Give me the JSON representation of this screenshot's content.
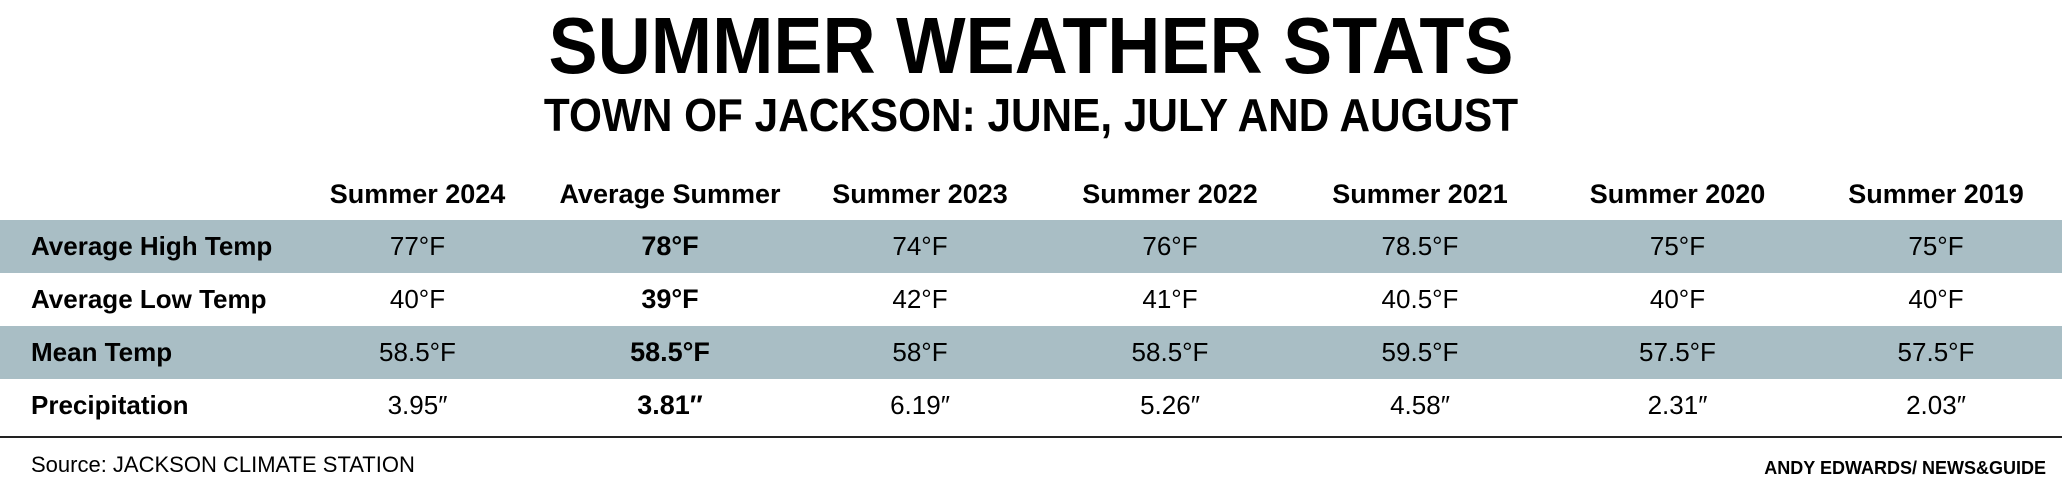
{
  "title": "SUMMER WEATHER STATS",
  "subtitle": "TOWN OF JACKSON: JUNE, JULY AND AUGUST",
  "colors": {
    "shaded_row": "#a9bec5",
    "rule": "#222222"
  },
  "chart_data": {
    "type": "table",
    "title": "SUMMER WEATHER STATS",
    "subtitle": "TOWN OF JACKSON: JUNE, JULY AND AUGUST",
    "columns": [
      "Summer 2024",
      "Average Summer",
      "Summer 2023",
      "Summer 2022",
      "Summer 2021",
      "Summer 2020",
      "Summer 2019"
    ],
    "highlight_column": "Average Summer",
    "rows": [
      {
        "label": "Average High Temp",
        "shaded": true,
        "values": [
          "77°F",
          "78°F",
          "74°F",
          "76°F",
          "78.5°F",
          "75°F",
          "75°F"
        ]
      },
      {
        "label": "Average Low Temp",
        "shaded": false,
        "values": [
          "40°F",
          "39°F",
          "42°F",
          "41°F",
          "40.5°F",
          "40°F",
          "40°F"
        ]
      },
      {
        "label": "Mean Temp",
        "shaded": true,
        "values": [
          "58.5°F",
          "58.5°F",
          "58°F",
          "58.5°F",
          "59.5°F",
          "57.5°F",
          "57.5°F"
        ]
      },
      {
        "label": "Precipitation",
        "shaded": false,
        "values": [
          "3.95″",
          "3.81″",
          "6.19″",
          "5.26″",
          "4.58″",
          "2.31″",
          "2.03″"
        ]
      }
    ]
  },
  "source": "Source: JACKSON CLIMATE STATION",
  "credit": "ANDY EDWARDS/ NEWS&GUIDE"
}
